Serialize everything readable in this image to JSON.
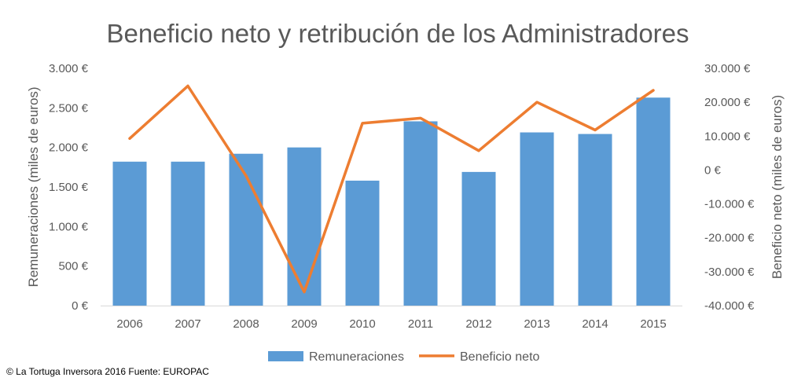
{
  "chart_data": {
    "type": "bar",
    "title": "Beneficio neto y retribución de los Administradores",
    "categories": [
      "2006",
      "2007",
      "2008",
      "2009",
      "2010",
      "2011",
      "2012",
      "2013",
      "2014",
      "2015"
    ],
    "series": [
      {
        "name": "Remuneraciones",
        "type": "bar",
        "axis": "left",
        "color": "#5B9BD5",
        "values": [
          1820,
          1820,
          1920,
          2000,
          1580,
          2330,
          1690,
          2190,
          2170,
          2630
        ]
      },
      {
        "name": "Beneficio neto",
        "type": "line",
        "axis": "right",
        "color": "#ED7D31",
        "values": [
          9300,
          24800,
          -1700,
          -36000,
          13800,
          15300,
          5700,
          20000,
          11800,
          23500
        ]
      }
    ],
    "y_left": {
      "label": "Remuneraciones (miles de euros)",
      "ylim": [
        0,
        3000
      ],
      "ticks": [
        0,
        500,
        1000,
        1500,
        2000,
        2500,
        3000
      ],
      "tick_labels": [
        "0 €",
        "500 €",
        "1.000 €",
        "1.500 €",
        "2.000 €",
        "2.500 €",
        "3.000 €"
      ]
    },
    "y_right": {
      "label": "Beneficio neto (miles de euros)",
      "ylim": [
        -40000,
        30000
      ],
      "ticks": [
        -40000,
        -30000,
        -20000,
        -10000,
        0,
        10000,
        20000,
        30000
      ],
      "tick_labels": [
        "-40.000 €",
        "-30.000 €",
        "-20.000 €",
        "-10.000 €",
        "0 €",
        "10.000 €",
        "20.000 €",
        "30.000 €"
      ]
    },
    "grid": false,
    "legend": "bottom"
  },
  "credit": "© La Tortuga Inversora 2016 Fuente: EUROPAC"
}
